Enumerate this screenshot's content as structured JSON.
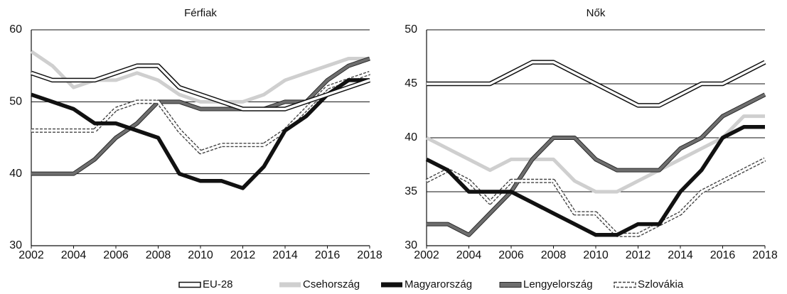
{
  "chart_data": [
    {
      "type": "line",
      "title": "Férfiak",
      "xlabel": "",
      "ylabel": "",
      "ylim": [
        30,
        60
      ],
      "xlim": [
        2002,
        2018
      ],
      "yticks": [
        30,
        40,
        50,
        60
      ],
      "xticks": [
        2002,
        2004,
        2006,
        2008,
        2010,
        2012,
        2014,
        2016,
        2018
      ],
      "grid": "horizontal",
      "x": [
        2002,
        2003,
        2004,
        2005,
        2006,
        2007,
        2008,
        2009,
        2010,
        2011,
        2012,
        2013,
        2014,
        2015,
        2016,
        2017,
        2018
      ],
      "series": [
        {
          "name": "Csehország",
          "values": [
            57,
            55,
            52,
            53,
            53,
            54,
            53,
            51,
            50,
            50,
            50,
            51,
            53,
            54,
            55,
            56,
            56
          ]
        },
        {
          "name": "Lengyelország",
          "values": [
            40,
            40,
            40,
            42,
            45,
            47,
            50,
            50,
            49,
            49,
            49,
            49,
            50,
            50,
            53,
            55,
            56
          ]
        },
        {
          "name": "Szlovákia",
          "values": [
            46,
            46,
            46,
            46,
            49,
            50,
            50,
            46,
            43,
            44,
            44,
            44,
            46,
            49,
            52,
            53,
            54
          ]
        },
        {
          "name": "Magyarország",
          "values": [
            51,
            50,
            49,
            47,
            47,
            46,
            45,
            40,
            39,
            39,
            38,
            41,
            46,
            48,
            51,
            53,
            53
          ]
        },
        {
          "name": "EU-28",
          "values": [
            54,
            53,
            53,
            53,
            54,
            55,
            55,
            52,
            51,
            50,
            49,
            49,
            49,
            50,
            51,
            52,
            53
          ]
        }
      ]
    },
    {
      "type": "line",
      "title": "Nők",
      "xlabel": "",
      "ylabel": "",
      "ylim": [
        30,
        50
      ],
      "xlim": [
        2002,
        2018
      ],
      "yticks": [
        30,
        35,
        40,
        45,
        50
      ],
      "xticks": [
        2002,
        2004,
        2006,
        2008,
        2010,
        2012,
        2014,
        2016,
        2018
      ],
      "grid": "horizontal",
      "x": [
        2002,
        2003,
        2004,
        2005,
        2006,
        2007,
        2008,
        2009,
        2010,
        2011,
        2012,
        2013,
        2014,
        2015,
        2016,
        2017,
        2018
      ],
      "series": [
        {
          "name": "Csehország",
          "values": [
            40,
            39,
            38,
            37,
            38,
            38,
            38,
            36,
            35,
            35,
            36,
            37,
            38,
            39,
            40,
            42,
            42
          ]
        },
        {
          "name": "Lengyelország",
          "values": [
            32,
            32,
            31,
            33,
            35,
            38,
            40,
            40,
            38,
            37,
            37,
            37,
            39,
            40,
            42,
            43,
            44
          ]
        },
        {
          "name": "Szlovákia",
          "values": [
            36,
            37,
            36,
            34,
            36,
            36,
            36,
            33,
            33,
            31,
            31,
            32,
            33,
            35,
            36,
            37,
            38
          ]
        },
        {
          "name": "Magyarország",
          "values": [
            38,
            37,
            35,
            35,
            35,
            34,
            33,
            32,
            31,
            31,
            32,
            32,
            35,
            37,
            40,
            41,
            41
          ]
        },
        {
          "name": "EU-28",
          "values": [
            45,
            45,
            45,
            45,
            46,
            47,
            47,
            46,
            45,
            44,
            43,
            43,
            44,
            45,
            45,
            46,
            47
          ]
        }
      ]
    }
  ],
  "legend": {
    "placement": "bottom",
    "items": [
      {
        "name": "EU-28",
        "style": "double-white"
      },
      {
        "name": "Csehország",
        "style": "light-grey"
      },
      {
        "name": "Magyarország",
        "style": "black-thick"
      },
      {
        "name": "Lengyelország",
        "style": "dark-grey"
      },
      {
        "name": "Szlovákia",
        "style": "dashed"
      }
    ]
  },
  "colors": {
    "light_grey": "#cfcfcf",
    "dark_grey": "#6e6e6e",
    "black": "#111111",
    "outline": "#111111",
    "grid": "#111111"
  }
}
